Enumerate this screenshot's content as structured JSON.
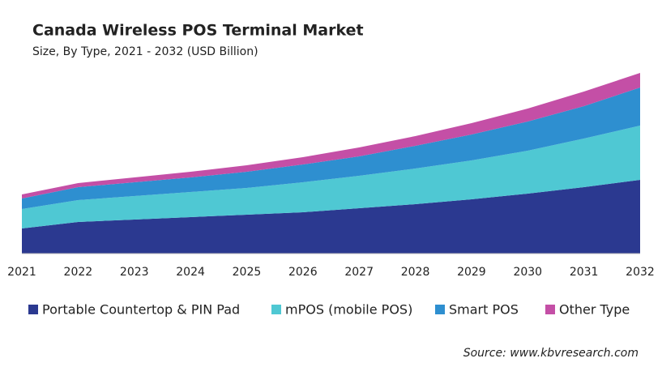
{
  "chart_data": {
    "type": "stacked_area",
    "title": "Canada Wireless POS Terminal Market",
    "subtitle": "Size, By Type, 2021 - 2032 (USD Billion)",
    "source": "Source: www.kbvresearch.com",
    "categories": [
      "2021",
      "2022",
      "2023",
      "2024",
      "2025",
      "2026",
      "2027",
      "2028",
      "2029",
      "2030",
      "2031",
      "2032"
    ],
    "ylim": [
      0,
      2.3
    ],
    "series": [
      {
        "name": "Portable Countertop & PIN Pad",
        "color": "#2b3990",
        "values": [
          0.31,
          0.39,
          0.42,
          0.45,
          0.48,
          0.51,
          0.56,
          0.61,
          0.67,
          0.74,
          0.82,
          0.91
        ]
      },
      {
        "name": "mPOS (mobile POS)",
        "color": "#4fc8d3",
        "values": [
          0.24,
          0.27,
          0.29,
          0.31,
          0.33,
          0.37,
          0.4,
          0.44,
          0.48,
          0.53,
          0.6,
          0.67
        ]
      },
      {
        "name": "Smart POS",
        "color": "#2e8fd0",
        "values": [
          0.13,
          0.16,
          0.17,
          0.18,
          0.2,
          0.22,
          0.24,
          0.28,
          0.32,
          0.36,
          0.4,
          0.47
        ]
      },
      {
        "name": "Other Type",
        "color": "#c44fa6",
        "values": [
          0.05,
          0.05,
          0.06,
          0.07,
          0.08,
          0.09,
          0.11,
          0.12,
          0.14,
          0.16,
          0.18,
          0.18
        ]
      }
    ]
  }
}
